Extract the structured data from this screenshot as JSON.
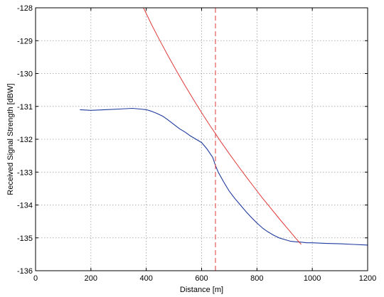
{
  "chart_data": {
    "type": "line",
    "title": "",
    "xlabel": "Distance [m]",
    "ylabel": "Received Signal Strength [dBW]",
    "xlim": [
      0,
      1200
    ],
    "ylim": [
      -136,
      -128
    ],
    "xticks": [
      0,
      200,
      400,
      600,
      800,
      1000,
      1200
    ],
    "yticks": [
      -136,
      -135,
      -134,
      -133,
      -132,
      -131,
      -130,
      -129,
      -128
    ],
    "x_tick_labels": [
      "0",
      "200",
      "400",
      "600",
      "800",
      "1000",
      "1200"
    ],
    "y_tick_labels": [
      "-136",
      "-135",
      "-134",
      "-133",
      "-132",
      "-131",
      "-130",
      "-129",
      "-128"
    ],
    "grid": true,
    "series": [
      {
        "color": "#1f3a9e",
        "style": "solid",
        "x": [
          160,
          200,
          250,
          300,
          350,
          380,
          400,
          420,
          440,
          460,
          480,
          500,
          520,
          540,
          560,
          580,
          600,
          620,
          640,
          650,
          660,
          680,
          700,
          720,
          740,
          760,
          780,
          800,
          820,
          840,
          860,
          880,
          900,
          920,
          940,
          960,
          980,
          1000,
          1050,
          1100,
          1150,
          1200
        ],
        "values": [
          -131.1,
          -131.12,
          -131.1,
          -131.08,
          -131.06,
          -131.08,
          -131.1,
          -131.15,
          -131.22,
          -131.3,
          -131.42,
          -131.55,
          -131.68,
          -131.78,
          -131.9,
          -132.0,
          -132.1,
          -132.3,
          -132.55,
          -132.8,
          -133.0,
          -133.3,
          -133.58,
          -133.8,
          -134.0,
          -134.2,
          -134.38,
          -134.55,
          -134.7,
          -134.82,
          -134.92,
          -135.0,
          -135.05,
          -135.1,
          -135.12,
          -135.13,
          -135.15,
          -135.15,
          -135.17,
          -135.18,
          -135.2,
          -135.22
        ]
      },
      {
        "color": "#e03a3a",
        "style": "solid",
        "x": [
          390,
          420,
          450,
          480,
          510,
          540,
          570,
          600,
          630,
          650,
          670,
          700,
          730,
          760,
          790,
          820,
          850,
          880,
          910,
          940,
          960
        ],
        "values": [
          -128.0,
          -128.52,
          -129.01,
          -129.48,
          -129.93,
          -130.36,
          -130.78,
          -131.19,
          -131.58,
          -131.83,
          -132.08,
          -132.44,
          -132.79,
          -133.13,
          -133.46,
          -133.79,
          -134.1,
          -134.41,
          -134.71,
          -135.01,
          -135.2
        ]
      },
      {
        "color": "#e03a3a",
        "style": "dashed",
        "x": [
          650,
          650
        ],
        "values": [
          -128,
          -136
        ]
      }
    ]
  }
}
